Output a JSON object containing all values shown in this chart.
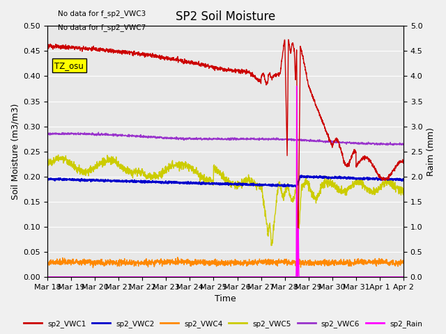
{
  "title": "SP2 Soil Moisture",
  "xlabel": "Time",
  "ylabel_left": "Soil Moisture (m3/m3)",
  "ylabel_right": "Raim (mm)",
  "no_data_text": [
    "No data for f_sp2_VWC3",
    "No data for f_sp2_VWC7"
  ],
  "tz_label": "TZ_osu",
  "ylim_left": [
    0.0,
    0.5
  ],
  "ylim_right": [
    0.0,
    5.0
  ],
  "x_tick_labels": [
    "Mar 18",
    "Mar 19",
    "Mar 20",
    "Mar 21",
    "Mar 22",
    "Mar 23",
    "Mar 24",
    "Mar 25",
    "Mar 26",
    "Mar 27",
    "Mar 28",
    "Mar 29",
    "Mar 30",
    "Mar 31",
    "Apr 1",
    "Apr 2"
  ],
  "background_color": "#e8e8e8",
  "grid_color": "#ffffff",
  "title_fontsize": 12,
  "axis_label_fontsize": 9,
  "tick_fontsize": 8,
  "vwc1_color": "#cc0000",
  "vwc2_color": "#0000cc",
  "vwc4_color": "#ff8800",
  "vwc5_color": "#cccc00",
  "vwc6_color": "#9933cc",
  "rain_color": "#ff00ff"
}
